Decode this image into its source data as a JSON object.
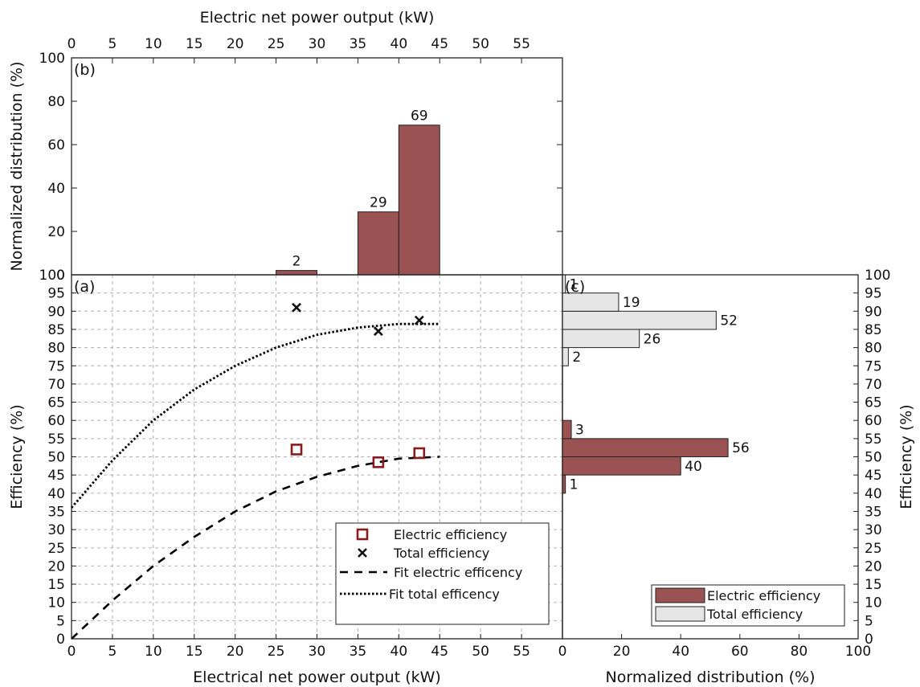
{
  "colors": {
    "electric": "#9a5252",
    "total": "#e6e6e6",
    "marker_electric": "#8b1a1a",
    "marker_total": "#111111"
  },
  "chart_data": [
    {
      "panel": "(b)",
      "type": "bar",
      "xlabel": "Electric net power output (kW)",
      "ylabel": "Normalized distribution (%)",
      "xlim": [
        0,
        60
      ],
      "ylim": [
        0,
        100
      ],
      "xticks": [
        0,
        5,
        10,
        15,
        20,
        25,
        30,
        35,
        40,
        45,
        50,
        55
      ],
      "yticks": [
        0,
        20,
        40,
        60,
        80,
        100
      ],
      "bins": [
        {
          "from": 25,
          "to": 30,
          "value": 2,
          "label": "2"
        },
        {
          "from": 35,
          "to": 40,
          "value": 29,
          "label": "29"
        },
        {
          "from": 40,
          "to": 45,
          "value": 69,
          "label": "69"
        }
      ]
    },
    {
      "panel": "(a)",
      "type": "scatter",
      "xlabel": "Electrical net power output (kW)",
      "ylabel": "Efficiency (%)",
      "xlim": [
        0,
        60
      ],
      "ylim": [
        0,
        100
      ],
      "xticks": [
        0,
        5,
        10,
        15,
        20,
        25,
        30,
        35,
        40,
        45,
        50,
        55
      ],
      "yticks": [
        0,
        5,
        10,
        15,
        20,
        25,
        30,
        35,
        40,
        45,
        50,
        55,
        60,
        65,
        70,
        75,
        80,
        85,
        90,
        95,
        100
      ],
      "grid": true,
      "legend_position": "bottom-right",
      "series": [
        {
          "name": "Electric efficiency",
          "marker": "square",
          "x": [
            27.5,
            37.5,
            42.5
          ],
          "y": [
            52,
            48.5,
            51
          ]
        },
        {
          "name": "Total efficiency",
          "marker": "x",
          "x": [
            27.5,
            37.5,
            42.5
          ],
          "y": [
            91,
            84.5,
            87.5
          ]
        },
        {
          "name": "Fit electric efficency",
          "line": "dashed",
          "x": [
            0,
            5,
            10,
            15,
            20,
            25,
            30,
            35,
            40,
            45
          ],
          "y": [
            0,
            10.5,
            20,
            28,
            35,
            40.5,
            44.5,
            47.5,
            49.5,
            50
          ]
        },
        {
          "name": "Fit total efficency",
          "line": "dotted",
          "x": [
            0,
            5,
            10,
            15,
            20,
            25,
            30,
            35,
            40,
            45
          ],
          "y": [
            36,
            49,
            60,
            68.5,
            75,
            80,
            83.5,
            85.5,
            86.5,
            86.5
          ]
        }
      ]
    },
    {
      "panel": "(c)",
      "type": "bar",
      "orientation": "horizontal",
      "xlabel": "Normalized distribution (%)",
      "ylabel": "Efficiency (%)",
      "xlim": [
        0,
        100
      ],
      "ylim": [
        0,
        100
      ],
      "xticks": [
        0,
        20,
        40,
        60,
        80,
        100
      ],
      "yticks": [
        0,
        5,
        10,
        15,
        20,
        25,
        30,
        35,
        40,
        45,
        50,
        55,
        60,
        65,
        70,
        75,
        80,
        85,
        90,
        95,
        100
      ],
      "legend_position": "bottom-right",
      "series": [
        {
          "name": "Electric efficiency",
          "bins": [
            {
              "from": 40,
              "to": 45,
              "value": 1,
              "label": "1"
            },
            {
              "from": 45,
              "to": 50,
              "value": 40,
              "label": "40"
            },
            {
              "from": 50,
              "to": 55,
              "value": 56,
              "label": "56"
            },
            {
              "from": 55,
              "to": 60,
              "value": 3,
              "label": "3"
            }
          ]
        },
        {
          "name": "Total efficiency",
          "bins": [
            {
              "from": 75,
              "to": 80,
              "value": 2,
              "label": "2"
            },
            {
              "from": 80,
              "to": 85,
              "value": 26,
              "label": "26"
            },
            {
              "from": 85,
              "to": 90,
              "value": 52,
              "label": "52"
            },
            {
              "from": 90,
              "to": 95,
              "value": 19,
              "label": "19"
            },
            {
              "from": 95,
              "to": 100,
              "value": 1,
              "label": "1"
            }
          ]
        }
      ]
    }
  ]
}
